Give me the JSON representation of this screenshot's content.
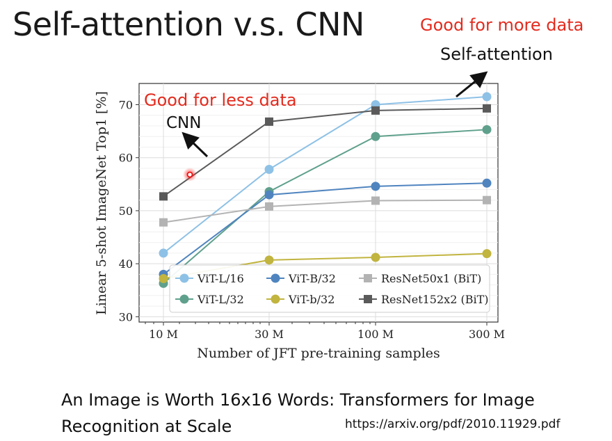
{
  "slide": {
    "title": "Self-attention v.s. CNN",
    "top_note": "Good for more data",
    "self_attention_label": "Self-attention",
    "paper_title_line1": "An Image is Worth 16x16 Words: Transformers for Image",
    "paper_title_line2": "Recognition at Scale",
    "url": "https://arxiv.org/pdf/2010.11929.pdf"
  },
  "chart_data": {
    "type": "line",
    "title": "",
    "xlabel": "Number of JFT pre-training samples",
    "ylabel": "Linear 5-shot ImageNet Top1 [%]",
    "x": [
      "10 M",
      "30 M",
      "100 M",
      "300 M"
    ],
    "x_scale": "log",
    "yticks": [
      30,
      40,
      50,
      60,
      70
    ],
    "ylim": [
      29,
      74
    ],
    "grid": true,
    "legend_position": "lower-right",
    "annotations": [
      {
        "text": "Good for less data",
        "color": "#e32b1e"
      },
      {
        "text": "CNN",
        "color": "#111111"
      }
    ],
    "series": [
      {
        "name": "ViT-L/16",
        "marker": "circle",
        "color": "#8ec1e6",
        "values": [
          42.0,
          57.8,
          70.0,
          71.5
        ]
      },
      {
        "name": "ViT-L/32",
        "marker": "circle",
        "color": "#5fa08c",
        "values": [
          36.3,
          53.6,
          64.0,
          65.3
        ]
      },
      {
        "name": "ViT-B/32",
        "marker": "circle",
        "color": "#4f84bf",
        "values": [
          38.0,
          53.0,
          54.6,
          55.2
        ]
      },
      {
        "name": "ViT-b/32",
        "marker": "circle",
        "color": "#c1b43f",
        "values": [
          37.2,
          40.7,
          41.2,
          41.9
        ]
      },
      {
        "name": "ResNet50x1 (BiT)",
        "marker": "square",
        "color": "#b3b3b3",
        "values": [
          47.8,
          50.8,
          51.9,
          52.0
        ]
      },
      {
        "name": "ResNet152x2 (BiT)",
        "marker": "square",
        "color": "#5a5a5a",
        "values": [
          52.7,
          66.8,
          68.9,
          69.3
        ]
      }
    ]
  }
}
